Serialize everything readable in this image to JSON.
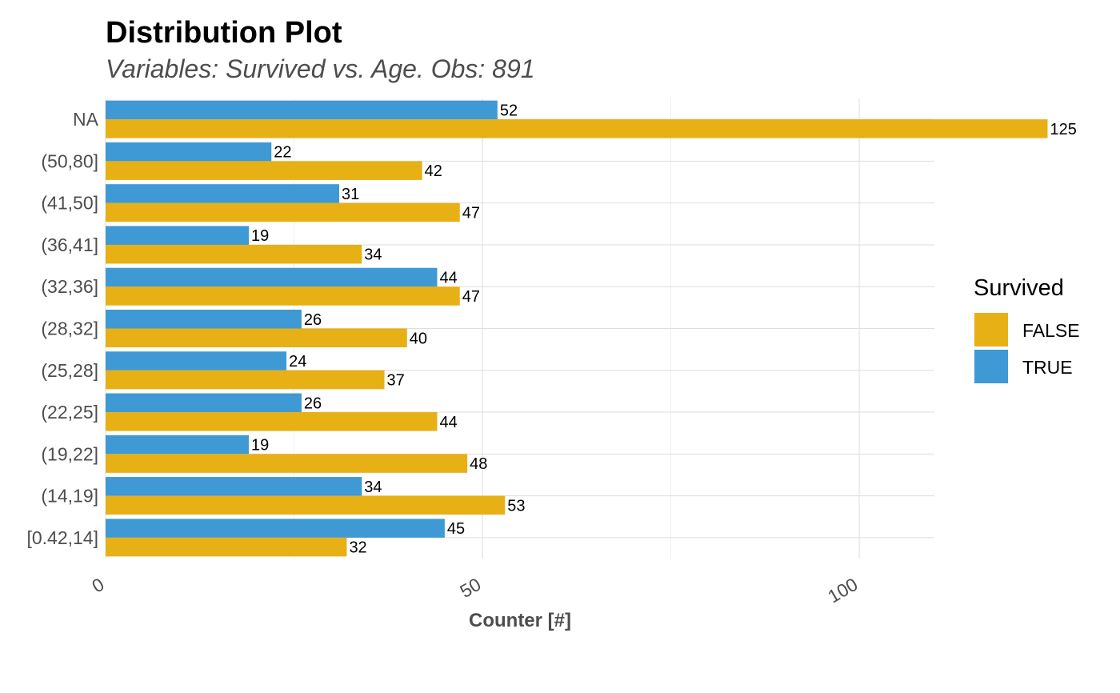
{
  "chart_data": {
    "type": "bar",
    "orientation": "horizontal",
    "title": "Distribution Plot",
    "subtitle": "Variables: Survived vs. Age. Obs: 891",
    "xlabel": "Counter [#]",
    "ylabel": "",
    "xlim": [
      0,
      137
    ],
    "x_ticks": [
      0,
      50,
      100
    ],
    "grid": true,
    "legend_position": "right",
    "legend_title": "Survived",
    "categories": [
      "NA",
      "(50,80]",
      "(41,50]",
      "(36,41]",
      "(32,36]",
      "(28,32]",
      "(25,28]",
      "(22,25]",
      "(19,22]",
      "(14,19]",
      "[0.42,14]"
    ],
    "series": [
      {
        "name": "FALSE",
        "color": "#E7B015",
        "values": [
          125,
          42,
          47,
          34,
          47,
          40,
          37,
          44,
          48,
          53,
          32
        ]
      },
      {
        "name": "TRUE",
        "color": "#3F99D4",
        "values": [
          52,
          22,
          31,
          19,
          44,
          26,
          24,
          26,
          19,
          34,
          45
        ]
      }
    ]
  }
}
